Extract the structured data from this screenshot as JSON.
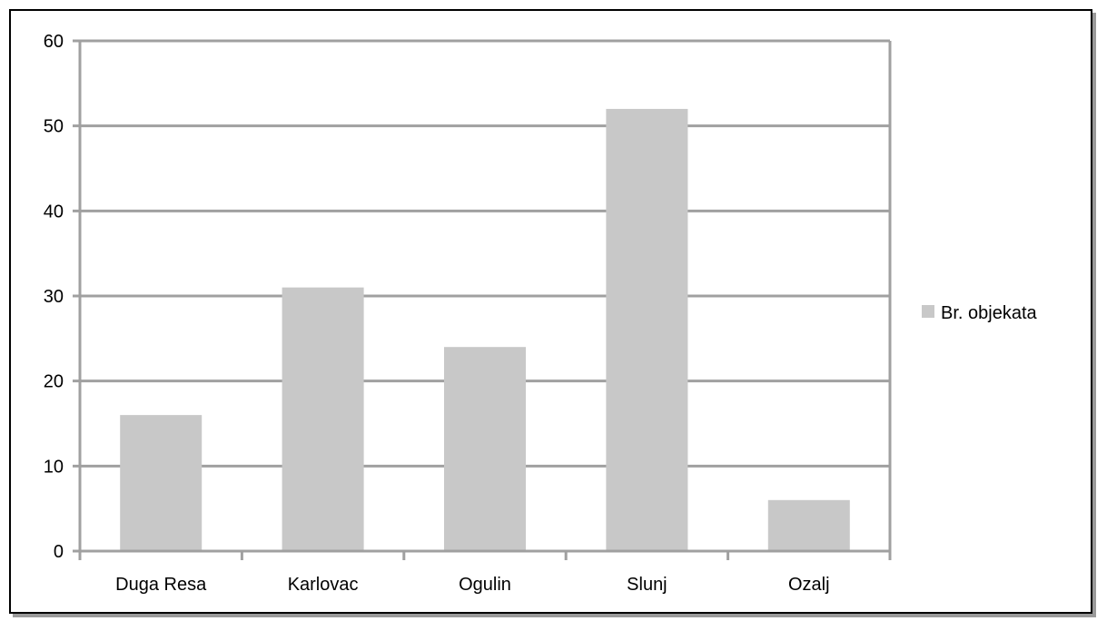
{
  "chart_data": {
    "type": "bar",
    "categories": [
      "Duga Resa",
      "Karlovac",
      "Ogulin",
      "Slunj",
      "Ozalj"
    ],
    "series": [
      {
        "name": "Br. objekata",
        "values": [
          16,
          31,
          24,
          52,
          6
        ],
        "color": "#c8c8c8"
      }
    ],
    "ylim": [
      0,
      60
    ],
    "yticks": [
      0,
      10,
      20,
      30,
      40,
      50,
      60
    ],
    "grid": true,
    "legend_position": "right",
    "colors": {
      "gridline": "#a0a0a0",
      "axis": "#a0a0a0",
      "bar": "#c8c8c8"
    }
  }
}
